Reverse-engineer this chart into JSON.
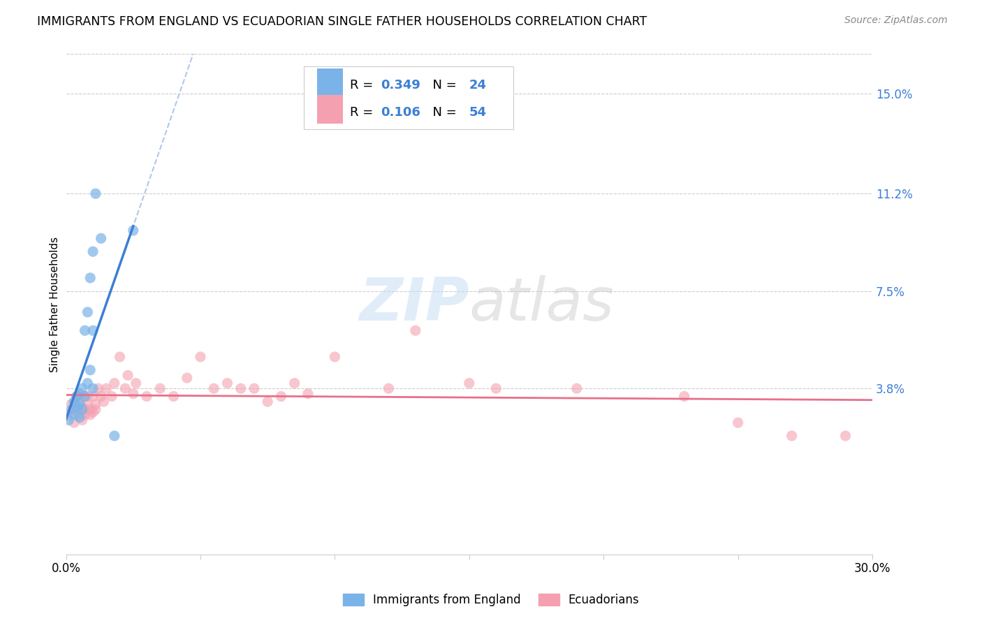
{
  "title": "IMMIGRANTS FROM ENGLAND VS ECUADORIAN SINGLE FATHER HOUSEHOLDS CORRELATION CHART",
  "source": "Source: ZipAtlas.com",
  "ylabel": "Single Father Households",
  "yticks_labels": [
    "15.0%",
    "11.2%",
    "7.5%",
    "3.8%"
  ],
  "ytick_vals": [
    0.15,
    0.112,
    0.075,
    0.038
  ],
  "xlim": [
    0.0,
    0.3
  ],
  "ylim": [
    -0.025,
    0.165
  ],
  "color_england": "#7ab3e8",
  "color_ecuador": "#f4a0b0",
  "trendline_england_color": "#3b7fd4",
  "trendline_ecuador_color": "#e8708a",
  "trendline_dashed_color": "#b0c8e8",
  "watermark": "ZIPatlas",
  "legend_label1": "Immigrants from England",
  "legend_label2": "Ecuadorians",
  "england_x": [
    0.001,
    0.002,
    0.003,
    0.003,
    0.004,
    0.004,
    0.005,
    0.005,
    0.005,
    0.006,
    0.006,
    0.007,
    0.007,
    0.008,
    0.008,
    0.009,
    0.009,
    0.01,
    0.01,
    0.01,
    0.011,
    0.013,
    0.018,
    0.025
  ],
  "england_y": [
    0.026,
    0.03,
    0.028,
    0.033,
    0.031,
    0.035,
    0.032,
    0.036,
    0.027,
    0.038,
    0.03,
    0.06,
    0.035,
    0.067,
    0.04,
    0.08,
    0.045,
    0.09,
    0.06,
    0.038,
    0.112,
    0.095,
    0.02,
    0.098
  ],
  "ecuador_x": [
    0.001,
    0.002,
    0.003,
    0.003,
    0.004,
    0.005,
    0.005,
    0.006,
    0.006,
    0.007,
    0.007,
    0.007,
    0.008,
    0.008,
    0.009,
    0.009,
    0.01,
    0.01,
    0.011,
    0.011,
    0.012,
    0.013,
    0.014,
    0.015,
    0.017,
    0.018,
    0.02,
    0.022,
    0.023,
    0.025,
    0.026,
    0.03,
    0.035,
    0.04,
    0.045,
    0.05,
    0.055,
    0.06,
    0.065,
    0.07,
    0.075,
    0.08,
    0.085,
    0.09,
    0.1,
    0.12,
    0.13,
    0.15,
    0.16,
    0.19,
    0.23,
    0.25,
    0.27,
    0.29
  ],
  "ecuador_y": [
    0.028,
    0.032,
    0.025,
    0.03,
    0.035,
    0.028,
    0.033,
    0.026,
    0.031,
    0.03,
    0.035,
    0.028,
    0.035,
    0.032,
    0.03,
    0.028,
    0.035,
    0.029,
    0.03,
    0.032,
    0.038,
    0.035,
    0.033,
    0.038,
    0.035,
    0.04,
    0.05,
    0.038,
    0.043,
    0.036,
    0.04,
    0.035,
    0.038,
    0.035,
    0.042,
    0.05,
    0.038,
    0.04,
    0.038,
    0.038,
    0.033,
    0.035,
    0.04,
    0.036,
    0.05,
    0.038,
    0.06,
    0.04,
    0.038,
    0.038,
    0.035,
    0.025,
    0.02,
    0.02
  ]
}
